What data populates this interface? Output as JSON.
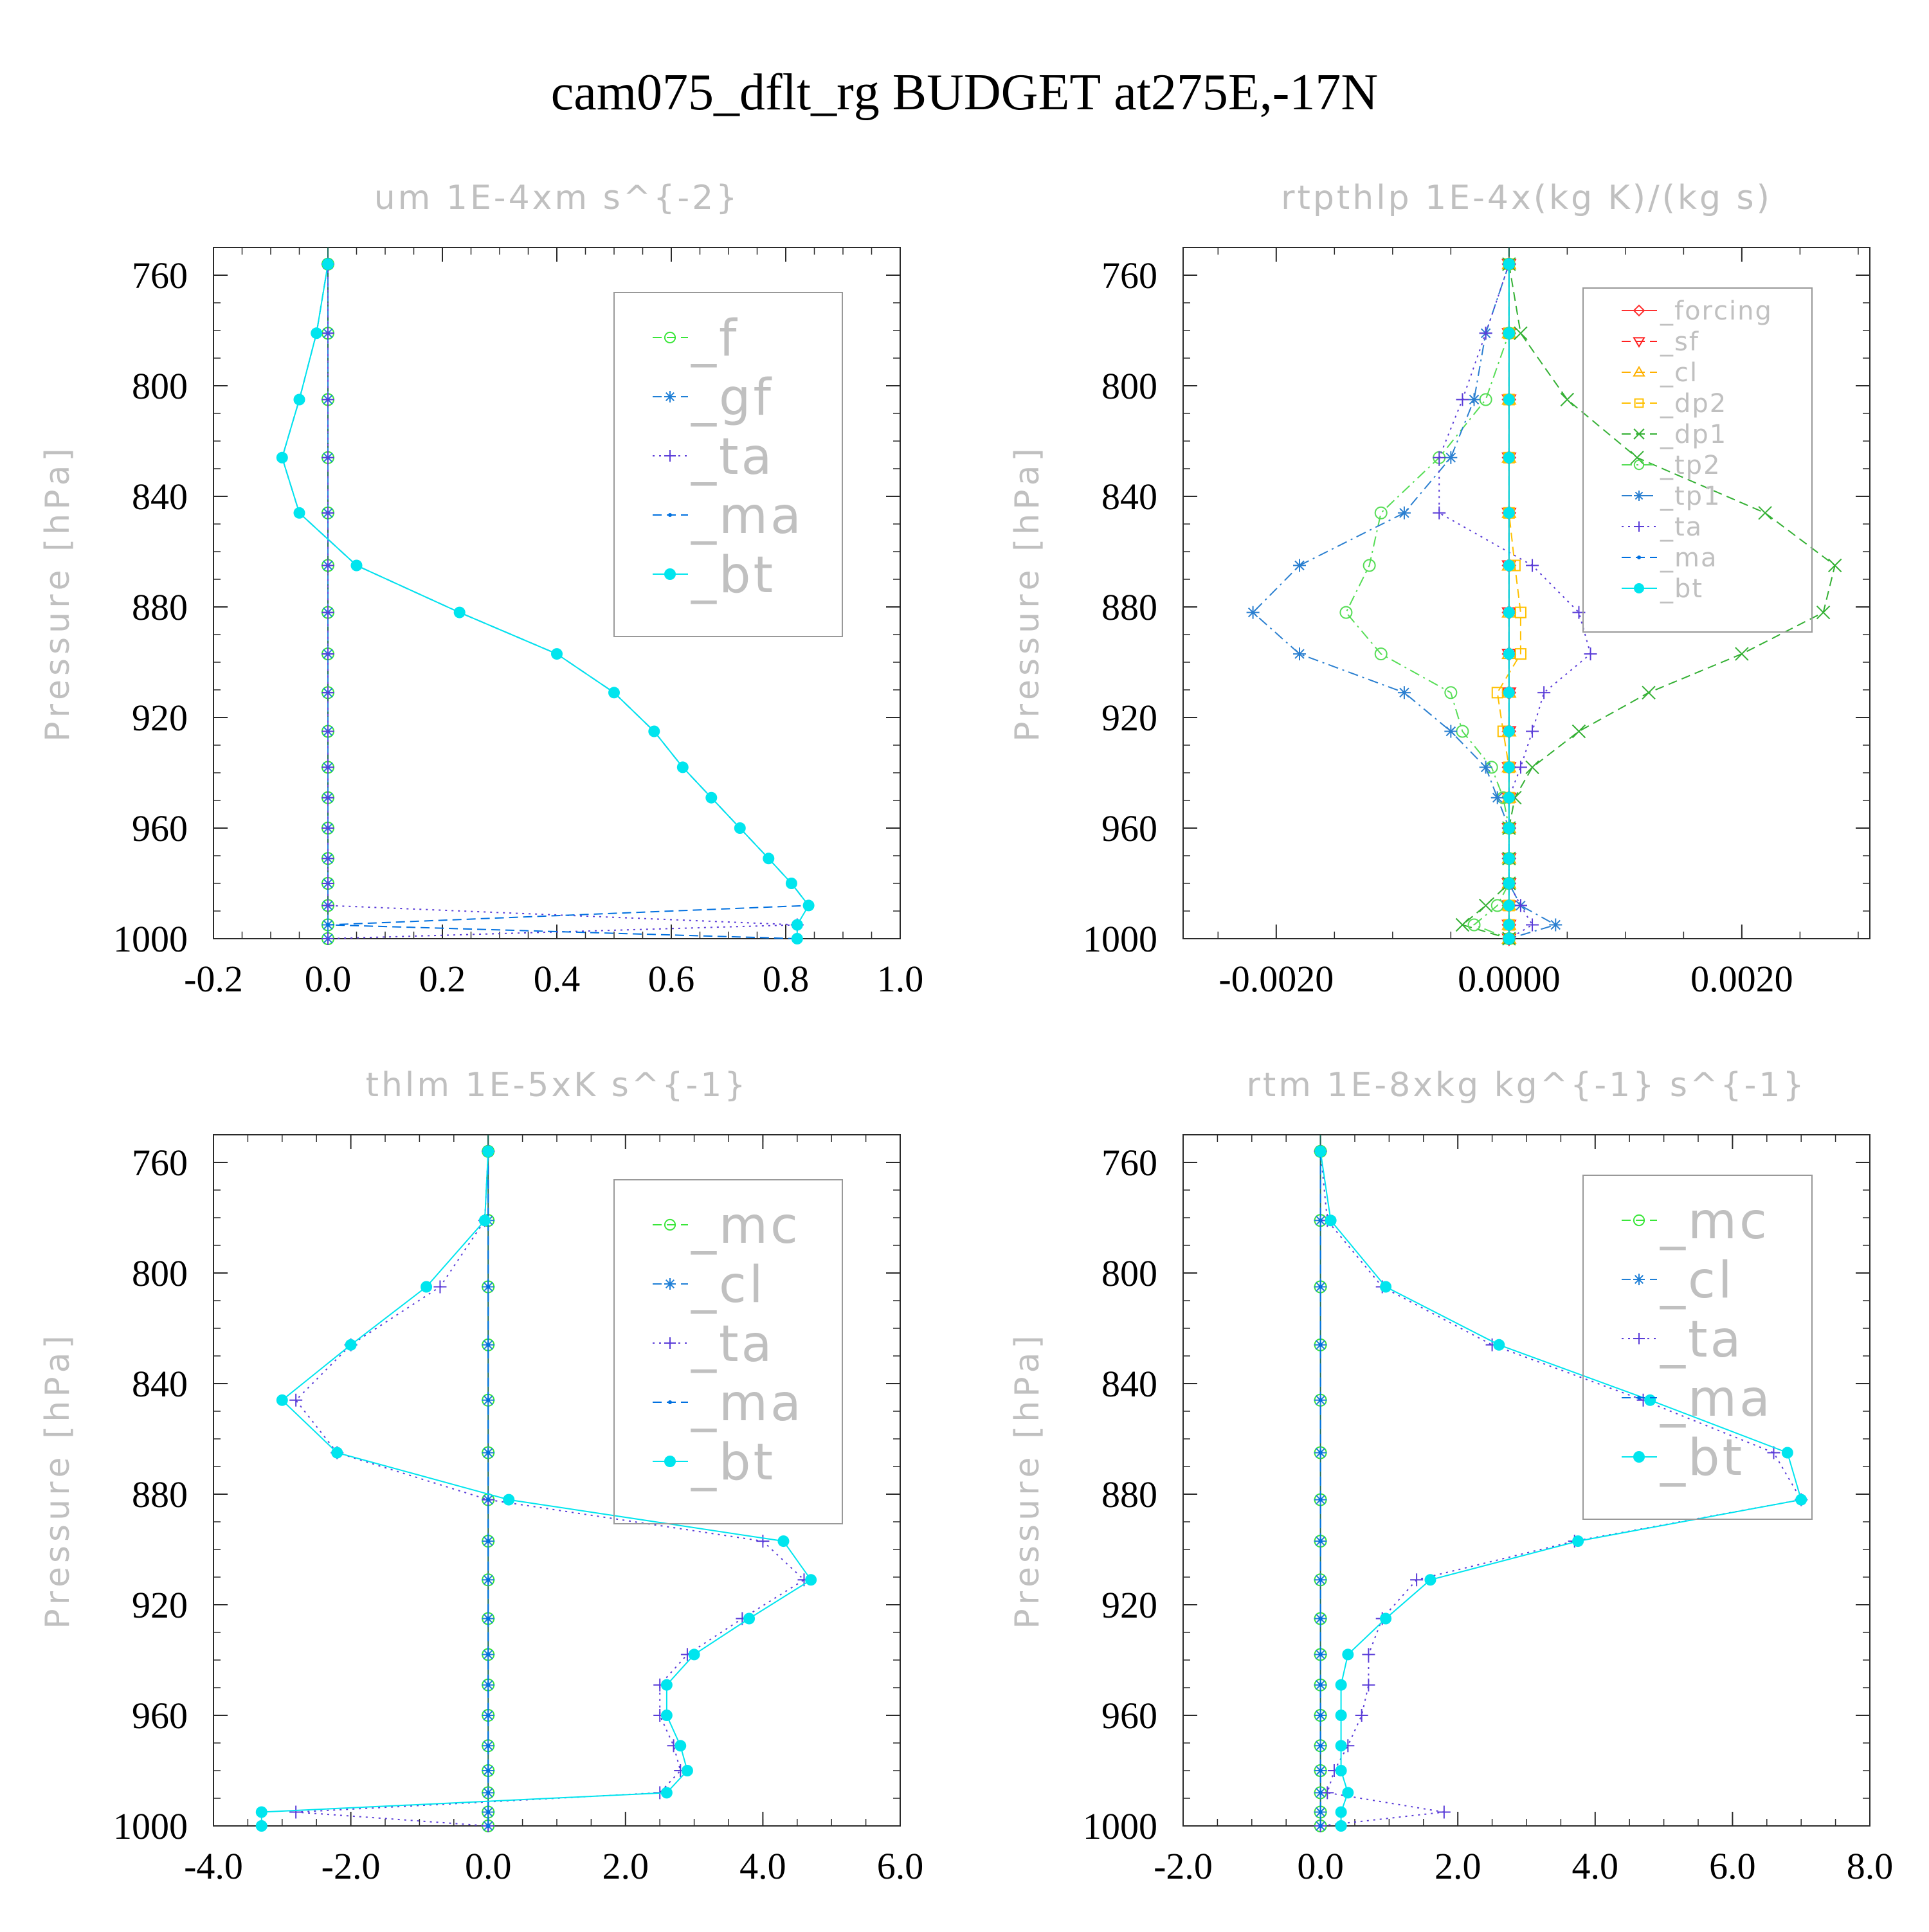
{
  "title": "cam075_dflt_rg  BUDGET at275E,-17N",
  "colors": {
    "f": "#39e639",
    "gf": "#1f7fd6",
    "ta": "#5a3cd8",
    "ma": "#0070e0",
    "bt": "#00e5ee",
    "forcing": "#ff3030",
    "sf": "#ff2020",
    "cl": "#ffb000",
    "dp2": "#ffc000",
    "dp1": "#33b033",
    "tp2": "#55dd55",
    "tp1": "#2a7fd0",
    "mc": "#39e639",
    "frame": "#2a2a2a",
    "title_faint": "#c0c0c0",
    "tick_label": "#000000"
  },
  "chart_data": [
    {
      "type": "line",
      "title": "um   1E-4xm s^{-2}",
      "ylabel": "Pressure [hPa]",
      "xlim": [
        -0.2,
        1.0
      ],
      "xticks": [
        -0.2,
        0.0,
        0.2,
        0.4,
        0.6,
        0.8,
        1.0
      ],
      "xtick_labels": [
        "-0.2",
        "0.0",
        "0.2",
        "0.4",
        "0.6",
        "0.8",
        "1.0"
      ],
      "ylim": [
        1000,
        750
      ],
      "yticks": [
        760,
        800,
        840,
        880,
        920,
        960,
        1000
      ],
      "pressure": [
        756,
        781,
        805,
        826,
        846,
        865,
        882,
        897,
        911,
        925,
        938,
        949,
        960,
        971,
        980,
        988,
        995,
        1000
      ],
      "legend_style": "large",
      "series": [
        {
          "name": "_f",
          "key": "f",
          "marker": "circle-open",
          "dash": "dashed",
          "values": [
            0,
            0,
            0,
            0,
            0,
            0,
            0,
            0,
            0,
            0,
            0,
            0,
            0,
            0,
            0,
            0,
            0,
            0
          ]
        },
        {
          "name": "_gf",
          "key": "gf",
          "marker": "star",
          "dash": "dashed",
          "values": [
            0,
            0,
            0,
            0,
            0,
            0,
            0,
            0,
            0,
            0,
            0,
            0,
            0,
            0,
            0,
            0,
            0,
            0
          ]
        },
        {
          "name": "_ta",
          "key": "ta",
          "marker": "plus",
          "dash": "dotted",
          "values": [
            0,
            0,
            0,
            0,
            0,
            0,
            0,
            0,
            0,
            0,
            0,
            0,
            0,
            0,
            0,
            0,
            0.82,
            0
          ]
        },
        {
          "name": "_ma",
          "key": "ma",
          "marker": "dot",
          "dash": "dashed",
          "values": [
            0,
            -0.02,
            -0.05,
            -0.08,
            -0.05,
            0.05,
            0.23,
            0.4,
            0.5,
            0.57,
            0.62,
            0.67,
            0.72,
            0.77,
            0.81,
            0.84,
            0,
            0.82
          ]
        },
        {
          "name": "_bt",
          "key": "bt",
          "marker": "filled-circle",
          "dash": "solid",
          "values": [
            0,
            -0.02,
            -0.05,
            -0.08,
            -0.05,
            0.05,
            0.23,
            0.4,
            0.5,
            0.57,
            0.62,
            0.67,
            0.72,
            0.77,
            0.81,
            0.84,
            0.82,
            0.82
          ]
        }
      ]
    },
    {
      "type": "line",
      "title": "rtpthlp   1E-4x(kg K)/(kg s)",
      "ylabel": "Pressure [hPa]",
      "xlim": [
        -0.0028,
        0.0031
      ],
      "xticks": [
        -0.002,
        0.0,
        0.002
      ],
      "xtick_labels": [
        "-0.0020",
        "0.0000",
        "0.0020"
      ],
      "ylim": [
        1000,
        750
      ],
      "yticks": [
        760,
        800,
        840,
        880,
        920,
        960,
        1000
      ],
      "pressure": [
        756,
        781,
        805,
        826,
        846,
        865,
        882,
        897,
        911,
        925,
        938,
        949,
        960,
        971,
        980,
        988,
        995,
        1000
      ],
      "legend_style": "small",
      "series": [
        {
          "name": "_forcing",
          "key": "forcing",
          "marker": "diamond",
          "dash": "solid",
          "values": [
            0,
            0,
            0,
            0,
            0,
            0,
            0,
            0,
            0,
            0,
            0,
            0,
            0,
            0,
            0,
            0,
            0,
            0
          ]
        },
        {
          "name": "_sf",
          "key": "sf",
          "marker": "triangle-down",
          "dash": "dashed",
          "values": [
            0,
            0,
            0,
            0,
            0,
            0,
            0,
            0,
            0,
            0,
            0,
            0,
            0,
            0,
            0,
            0,
            0,
            0
          ]
        },
        {
          "name": "_cl",
          "key": "cl",
          "marker": "triangle-up",
          "dash": "dashed",
          "values": [
            0,
            0,
            0,
            0,
            0,
            0,
            0,
            0,
            0,
            0,
            0,
            0,
            0,
            0,
            0,
            0,
            0,
            0
          ]
        },
        {
          "name": "_dp2",
          "key": "dp2",
          "marker": "square",
          "dash": "dashed",
          "values": [
            0,
            0,
            0,
            0,
            0,
            5e-05,
            0.0001,
            0.0001,
            -0.0001,
            -5e-05,
            0,
            0,
            0,
            0,
            0,
            0,
            0,
            0
          ]
        },
        {
          "name": "_dp1",
          "key": "dp1",
          "marker": "x",
          "dash": "dashed",
          "values": [
            0,
            0.0001,
            0.0005,
            0.0011,
            0.0022,
            0.0028,
            0.0027,
            0.002,
            0.0012,
            0.0006,
            0.0002,
            5e-05,
            0,
            0,
            0,
            -0.0002,
            -0.0004,
            0
          ]
        },
        {
          "name": "_tp2",
          "key": "tp2",
          "marker": "circle-open",
          "dash": "dashdot",
          "values": [
            0,
            0,
            -0.0002,
            -0.0006,
            -0.0011,
            -0.0012,
            -0.0014,
            -0.0011,
            -0.0005,
            -0.0004,
            -0.00015,
            -5e-05,
            0,
            0,
            0,
            -0.0001,
            -0.0003,
            0
          ]
        },
        {
          "name": "_tp1",
          "key": "tp1",
          "marker": "star",
          "dash": "dashdot",
          "values": [
            0,
            -0.0002,
            -0.0003,
            -0.0005,
            -0.0009,
            -0.0018,
            -0.0022,
            -0.0018,
            -0.0009,
            -0.0005,
            -0.0002,
            -0.0001,
            0,
            0,
            0,
            0.0001,
            0.0004,
            0
          ]
        },
        {
          "name": "_ta",
          "key": "ta",
          "marker": "plus",
          "dash": "dotted",
          "values": [
            0,
            -0.0002,
            -0.0004,
            -0.0006,
            -0.0006,
            0.0002,
            0.0006,
            0.0007,
            0.0003,
            0.0002,
            0.0001,
            0,
            0,
            0,
            0,
            0.0001,
            0.0002,
            0
          ]
        },
        {
          "name": "_ma",
          "key": "ma",
          "marker": "dot",
          "dash": "dashed",
          "values": [
            0,
            0,
            0,
            0,
            0,
            0,
            0,
            0,
            0,
            0,
            0,
            0,
            0,
            0,
            0,
            0,
            0,
            0
          ]
        },
        {
          "name": "_bt",
          "key": "bt",
          "marker": "filled-circle",
          "dash": "solid",
          "values": [
            0,
            0,
            0,
            0,
            0,
            0,
            0,
            0,
            0,
            0,
            0,
            0,
            0,
            0,
            0,
            0,
            0,
            0
          ]
        }
      ]
    },
    {
      "type": "line",
      "title": "thlm   1E-5xK s^{-1}",
      "ylabel": "Pressure [hPa]",
      "xlim": [
        -4.0,
        6.0
      ],
      "xticks": [
        -4.0,
        -2.0,
        0.0,
        2.0,
        4.0,
        6.0
      ],
      "xtick_labels": [
        "-4.0",
        "-2.0",
        "0.0",
        "2.0",
        "4.0",
        "6.0"
      ],
      "ylim": [
        1000,
        750
      ],
      "yticks": [
        760,
        800,
        840,
        880,
        920,
        960,
        1000
      ],
      "pressure": [
        756,
        781,
        805,
        826,
        846,
        865,
        882,
        897,
        911,
        925,
        938,
        949,
        960,
        971,
        980,
        988,
        995,
        1000
      ],
      "legend_style": "large",
      "series": [
        {
          "name": "_mc",
          "key": "mc",
          "marker": "circle-open",
          "dash": "dashed",
          "values": [
            0,
            0,
            0,
            0,
            0,
            0,
            0,
            0,
            0,
            0,
            0,
            0,
            0,
            0,
            0,
            0,
            0,
            0
          ]
        },
        {
          "name": "_cl",
          "key": "gf",
          "marker": "star",
          "dash": "dashed",
          "values": [
            0,
            0,
            0,
            0,
            0,
            0,
            0,
            0,
            0,
            0,
            0,
            0,
            0,
            0,
            0,
            0,
            0,
            0
          ]
        },
        {
          "name": "_ta",
          "key": "ta",
          "marker": "plus",
          "dash": "dotted",
          "values": [
            0,
            -0.05,
            -0.7,
            -2.0,
            -2.8,
            -2.2,
            0,
            4.0,
            4.6,
            3.7,
            2.9,
            2.5,
            2.5,
            2.7,
            2.8,
            2.5,
            -2.8,
            0
          ]
        },
        {
          "name": "_ma",
          "key": "ma",
          "marker": "dot",
          "dash": "dashed",
          "values": [
            0,
            0,
            0,
            0,
            0,
            0,
            0,
            0,
            0,
            0,
            0,
            0,
            0,
            0,
            0,
            0,
            0,
            0
          ]
        },
        {
          "name": "_bt",
          "key": "bt",
          "marker": "filled-circle",
          "dash": "solid",
          "values": [
            0,
            -0.05,
            -0.9,
            -2.0,
            -3.0,
            -2.2,
            0.3,
            4.3,
            4.7,
            3.8,
            3.0,
            2.6,
            2.6,
            2.8,
            2.9,
            2.6,
            -3.3,
            -3.3
          ]
        }
      ]
    },
    {
      "type": "line",
      "title": "rtm   1E-8xkg kg^{-1} s^{-1}",
      "ylabel": "Pressure [hPa]",
      "xlim": [
        -2.0,
        8.0
      ],
      "xticks": [
        -2.0,
        0.0,
        2.0,
        4.0,
        6.0,
        8.0
      ],
      "xtick_labels": [
        "-2.0",
        "0.0",
        "2.0",
        "4.0",
        "6.0",
        "8.0"
      ],
      "ylim": [
        1000,
        750
      ],
      "yticks": [
        760,
        800,
        840,
        880,
        920,
        960,
        1000
      ],
      "pressure": [
        756,
        781,
        805,
        826,
        846,
        865,
        882,
        897,
        911,
        925,
        938,
        949,
        960,
        971,
        980,
        988,
        995,
        1000
      ],
      "legend_style": "large",
      "series": [
        {
          "name": "_mc",
          "key": "mc",
          "marker": "circle-open",
          "dash": "dashed",
          "values": [
            0,
            0,
            0,
            0,
            0,
            0,
            0,
            0,
            0,
            0,
            0,
            0,
            0,
            0,
            0,
            0,
            0,
            0
          ]
        },
        {
          "name": "_cl",
          "key": "gf",
          "marker": "star",
          "dash": "dashed",
          "values": [
            0,
            0,
            0,
            0,
            0,
            0,
            0,
            0,
            0,
            0,
            0,
            0,
            0,
            0,
            0,
            0,
            0,
            0
          ]
        },
        {
          "name": "_ta",
          "key": "ta",
          "marker": "plus",
          "dash": "dotted",
          "values": [
            0,
            0.1,
            0.9,
            2.5,
            4.7,
            6.6,
            7.0,
            3.7,
            1.4,
            0.9,
            0.7,
            0.7,
            0.6,
            0.4,
            0.2,
            0.1,
            1.8,
            0
          ]
        },
        {
          "name": "_ma",
          "key": "ma",
          "marker": "dot",
          "dash": "dashed",
          "values": [
            0,
            0,
            0,
            0,
            0,
            0,
            0,
            0,
            0,
            0,
            0,
            0,
            0,
            0,
            0,
            0,
            0,
            0
          ]
        },
        {
          "name": "_bt",
          "key": "bt",
          "marker": "filled-circle",
          "dash": "solid",
          "values": [
            0,
            0.15,
            0.95,
            2.6,
            4.8,
            6.8,
            7.0,
            3.75,
            1.6,
            0.95,
            0.4,
            0.3,
            0.3,
            0.3,
            0.3,
            0.4,
            0.3,
            0.3
          ]
        }
      ]
    }
  ]
}
